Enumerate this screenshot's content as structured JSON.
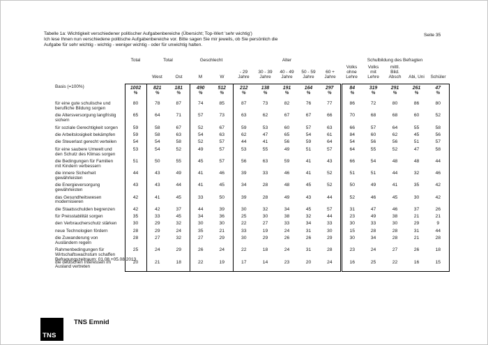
{
  "page": {
    "label": "Seite 35"
  },
  "header": {
    "title_lines": [
      "Tabelle 1a: Wichtigkeit verschiedener politischer Aufgabenbereiche (Übersicht; Top-Wert 'sehr wichtig')",
      "Ich lese Ihnen nun verschiedene politische Aufgabenbereiche vor. Bitte sagen Sie mir jeweils, ob Sie persönlich die",
      "Aufgabe für sehr wichtig - wichtig - weniger wichtig - oder für unwichtig halten."
    ]
  },
  "table": {
    "groups": [
      {
        "label": "Total",
        "span": 1
      },
      {
        "label": "Total",
        "span": 2
      },
      {
        "label": "Geschlecht",
        "span": 2
      },
      {
        "label": "Alter",
        "span": 5
      },
      {
        "label": "Schulbildung des Befragten",
        "span": 5
      }
    ],
    "columns": [
      "",
      "West",
      "Ost",
      "M",
      "W",
      "- 29\nJahre",
      "30 - 39\nJahre",
      "40 - 49\nJahre",
      "50 - 59\nJahre",
      "60 +\nJahre",
      "Volks\nohne\nLehre",
      "Volks\nmit\nLehre",
      "mittl.\nBild.\nAbsch",
      "Abi, Uni",
      "Schüler"
    ],
    "basis_label": "Basis (=100%)",
    "basis_values": [
      "1002",
      "821",
      "181",
      "490",
      "512",
      "212",
      "138",
      "191",
      "164",
      "297",
      "84",
      "319",
      "291",
      "261",
      "47"
    ],
    "percent": "%",
    "rows": [
      {
        "label": "für eine gute schulische und\nberufliche Bildung sorgen",
        "values": [
          80,
          78,
          87,
          74,
          85,
          87,
          73,
          82,
          76,
          77,
          86,
          72,
          80,
          86,
          80
        ]
      },
      {
        "label": "die Altersversorgung langfristig\nsichern",
        "values": [
          65,
          64,
          71,
          57,
          73,
          63,
          62,
          67,
          67,
          66,
          70,
          68,
          68,
          60,
          52
        ]
      },
      {
        "label": "für soziale Gerechtigkeit sorgen",
        "values": [
          59,
          58,
          67,
          52,
          67,
          59,
          53,
          60,
          57,
          63,
          66,
          57,
          64,
          55,
          58
        ]
      },
      {
        "label": "die Arbeitslosigkeit bekämpfen",
        "values": [
          59,
          58,
          63,
          54,
          63,
          62,
          47,
          65,
          54,
          61,
          84,
          60,
          62,
          45,
          56
        ]
      },
      {
        "label": "die Steuerlast gerecht verteilen",
        "values": [
          54,
          54,
          58,
          52,
          57,
          44,
          41,
          56,
          59,
          64,
          54,
          56,
          56,
          51,
          57
        ]
      },
      {
        "label": "für eine saubere Umwelt und\nden Schutz des Klimas sorgen",
        "values": [
          53,
          54,
          52,
          49,
          57,
          53,
          55,
          49,
          51,
          57,
          64,
          55,
          52,
          47,
          58
        ]
      },
      {
        "label": "die Bedingungen für Familien\nmit Kindern verbessern",
        "values": [
          51,
          50,
          55,
          45,
          57,
          56,
          63,
          59,
          41,
          43,
          66,
          54,
          48,
          48,
          44
        ]
      },
      {
        "label": "die innere Sicherheit\ngewährleisten",
        "values": [
          44,
          43,
          49,
          41,
          46,
          39,
          33,
          46,
          41,
          52,
          51,
          51,
          44,
          32,
          46
        ]
      },
      {
        "label": "die Energieversorgung\ngewährleisten",
        "values": [
          43,
          43,
          44,
          41,
          45,
          34,
          28,
          48,
          45,
          52,
          50,
          49,
          41,
          35,
          42
        ]
      },
      {
        "label": "das Gesundheitswesen\nmodernisieren",
        "values": [
          42,
          41,
          45,
          33,
          50,
          39,
          28,
          49,
          43,
          44,
          52,
          46,
          45,
          30,
          42
        ]
      },
      {
        "label": "die Staatsschulden begrenzen",
        "values": [
          42,
          42,
          37,
          44,
          39,
          30,
          32,
          34,
          45,
          57,
          31,
          47,
          46,
          37,
          26
        ]
      },
      {
        "label": "für Preisstabilität sorgen",
        "values": [
          35,
          33,
          45,
          34,
          36,
          25,
          30,
          38,
          32,
          44,
          23,
          49,
          38,
          21,
          21
        ]
      },
      {
        "label": "den Verbraucherschutz stärken",
        "values": [
          30,
          29,
          32,
          30,
          30,
          22,
          27,
          33,
          34,
          33,
          30,
          33,
          30,
          29,
          9
        ]
      },
      {
        "label": "neue Technologien fördern",
        "values": [
          28,
          29,
          24,
          35,
          21,
          33,
          19,
          24,
          31,
          30,
          15,
          28,
          28,
          31,
          44
        ]
      },
      {
        "label": "die Zuwanderung von\nAusländern regeln",
        "values": [
          28,
          27,
          32,
          27,
          29,
          30,
          29,
          26,
          26,
          29,
          30,
          34,
          28,
          21,
          28
        ]
      },
      {
        "label": "Rahmenbedingungen für\nWirtschaftswachstum schaffen",
        "values": [
          25,
          24,
          29,
          26,
          24,
          22,
          18,
          24,
          31,
          28,
          23,
          24,
          27,
          26,
          18
        ]
      },
      {
        "label": "die deutschen Interessen im\nAusland vertreten",
        "values": [
          20,
          21,
          18,
          22,
          19,
          17,
          14,
          23,
          20,
          24,
          16,
          25,
          22,
          16,
          15
        ]
      }
    ]
  },
  "footer": {
    "survey_period": "Befragungszeitraum: 01.08.+05.08.2013"
  },
  "branding": {
    "logo_text": "TNS",
    "company": "TNS Emnid"
  }
}
